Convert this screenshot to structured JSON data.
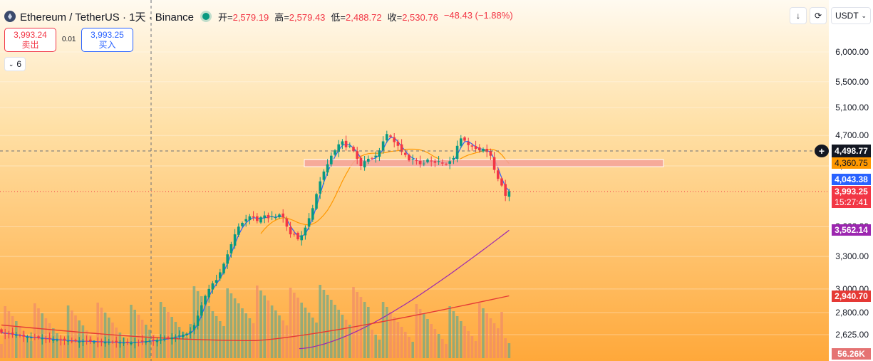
{
  "header": {
    "symbol": "Ethereum / TetherUS · 1天 · Binance",
    "open_label": "开=",
    "open": "2,579.19",
    "high_label": "高=",
    "high": "2,579.43",
    "low_label": "低=",
    "low": "2,488.72",
    "close_label": "收=",
    "close": "2,530.76",
    "change": "−48.43 (−1.88%)"
  },
  "trade": {
    "sell_price": "3,993.24",
    "sell_label": "卖出",
    "spread": "0.01",
    "buy_price": "3,993.25",
    "buy_label": "买入"
  },
  "indicator_toggle": "6",
  "toolbar": {
    "currency": "USDT"
  },
  "axis_labels": [
    "6,000.00",
    "5,500.00",
    "5,100.00",
    "4,700.00",
    "4,300.00",
    "3,600.00",
    "3,300.00",
    "3,000.00",
    "2,800.00",
    "2,625.00"
  ],
  "price_tags": {
    "crosshair": "4,498.77",
    "ma_orange": "4,360.75",
    "ma_blue": "4,043.38",
    "last": "3,993.25",
    "countdown": "15:27:41",
    "ma_purple": "3,562.14",
    "ma_red": "2,940.70",
    "volume": "56.26K"
  },
  "colors": {
    "up": "#089981",
    "down": "#f23645",
    "ma_blue": "#2962ff",
    "ma_orange": "#ff9800",
    "ma_purple": "#9c27b0",
    "ma_red": "#e53935",
    "zone": "#f4a29a"
  },
  "chart_data": {
    "type": "candlestick",
    "y_axis": {
      "min": 2480,
      "max": 6400
    },
    "resistance_zone": [
      4290,
      4380
    ],
    "candles_close": [
      2640,
      2632,
      2629,
      2626,
      2621,
      2615,
      2610,
      2606,
      2603,
      2601,
      2598,
      2596,
      2593,
      2590,
      2587,
      2585,
      2583,
      2580,
      2578,
      2577,
      2576,
      2575,
      2575,
      2575,
      2573,
      2572,
      2570,
      2570,
      2569,
      2568,
      2567,
      2566,
      2564,
      2564,
      2564,
      2565,
      2567,
      2569,
      2572,
      2575,
      2578,
      2580,
      2584,
      2588,
      2593,
      2598,
      2603,
      2610,
      2618,
      2624,
      2633,
      2650,
      2700,
      2775,
      2860,
      2940,
      3000,
      3050,
      3080,
      3150,
      3230,
      3320,
      3420,
      3520,
      3600,
      3640,
      3680,
      3710,
      3700,
      3660,
      3700,
      3720,
      3690,
      3710,
      3700,
      3730,
      3700,
      3600,
      3520,
      3520,
      3470,
      3510,
      3590,
      3690,
      3800,
      3960,
      4110,
      4230,
      4320,
      4430,
      4500,
      4580,
      4620,
      4540,
      4560,
      4490,
      4390,
      4300,
      4360,
      4390,
      4390,
      4430,
      4500,
      4620,
      4720,
      4680,
      4610,
      4560,
      4480,
      4440,
      4370,
      4390,
      4370,
      4320,
      4330,
      4380,
      4360,
      4340,
      4360,
      4330,
      4320,
      4360,
      4400,
      4560,
      4660,
      4630,
      4570,
      4550,
      4520,
      4500,
      4520,
      4480,
      4430,
      4250,
      4140,
      4060,
      3940,
      3993
    ],
    "ma_orange_end": 4360.75,
    "ma_blue_end": 4043.38,
    "ma_purple_end": 3562.14,
    "ma_red_end": 2940.7,
    "volume_last": "56.26K"
  }
}
